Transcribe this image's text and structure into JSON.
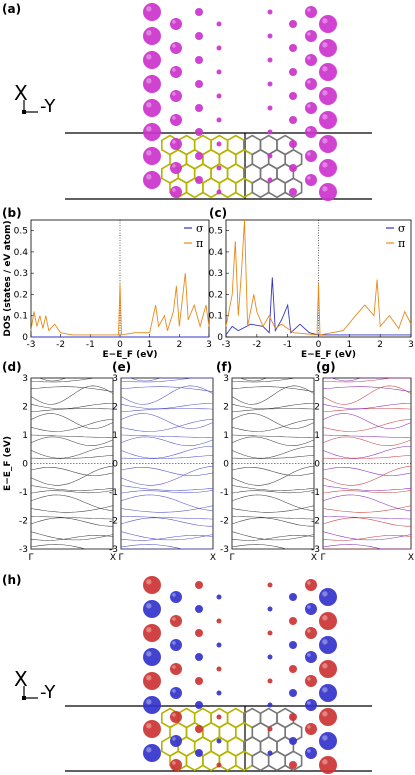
{
  "panels": {
    "a": "(a)",
    "b": "(b)",
    "c": "(c)",
    "d": "(d)",
    "e": "(e)",
    "f": "(f)",
    "g": "(g)",
    "h": "(h)"
  },
  "axes_glyph": {
    "x": "X",
    "y": "-Y"
  },
  "colors": {
    "magenta": "#cc33cc",
    "yellow": "#b5b200",
    "gray": "#777777",
    "blue": "#3333cc",
    "red": "#cc3333",
    "orange": "#e88a1a",
    "sigma": "#3333cc",
    "pi": "#e88a1a"
  },
  "chart_data": [
    {
      "type": "line",
      "id": "b",
      "xlabel": "E−E_F (eV)",
      "ylabel": "DOS (states / eV atom)",
      "xlim": [
        -3,
        3
      ],
      "ylim": [
        0,
        0.55
      ],
      "xticks": [
        "-3",
        "-2",
        "-1",
        "0",
        "1",
        "2",
        "3"
      ],
      "yticks": [
        "0",
        "0.1",
        "0.2",
        "0.3",
        "0.4",
        "0.5"
      ],
      "legend": [
        "σ",
        "π"
      ],
      "legend_position": "top-right",
      "series": [
        {
          "name": "σ",
          "values": [
            [
              -3,
              0
            ],
            [
              3,
              0
            ]
          ]
        },
        {
          "name": "π",
          "values": [
            [
              -3,
              0.03
            ],
            [
              -2.9,
              0.12
            ],
            [
              -2.8,
              0.05
            ],
            [
              -2.7,
              0.1
            ],
            [
              -2.6,
              0.04
            ],
            [
              -2.5,
              0.1
            ],
            [
              -2.4,
              0.03
            ],
            [
              -2.2,
              0.06
            ],
            [
              -2.0,
              0.02
            ],
            [
              -1.6,
              0.01
            ],
            [
              -1.0,
              0.01
            ],
            [
              -0.5,
              0.01
            ],
            [
              -0.05,
              0.01
            ],
            [
              0,
              0.25
            ],
            [
              0.05,
              0.01
            ],
            [
              0.5,
              0.02
            ],
            [
              1.0,
              0.02
            ],
            [
              1.2,
              0.15
            ],
            [
              1.3,
              0.05
            ],
            [
              1.5,
              0.1
            ],
            [
              1.6,
              0.03
            ],
            [
              1.8,
              0.12
            ],
            [
              1.9,
              0.24
            ],
            [
              2.0,
              0.05
            ],
            [
              2.2,
              0.3
            ],
            [
              2.3,
              0.08
            ],
            [
              2.5,
              0.15
            ],
            [
              2.7,
              0.05
            ],
            [
              2.9,
              0.15
            ],
            [
              3.0,
              0.05
            ]
          ]
        }
      ]
    },
    {
      "type": "line",
      "id": "c",
      "xlabel": "E−E_F (eV)",
      "xlim": [
        -3,
        3
      ],
      "ylim": [
        0,
        0.55
      ],
      "xticks": [
        "-3",
        "-2",
        "-1",
        "0",
        "1",
        "2",
        "3"
      ],
      "yticks": [
        "0",
        "0.1",
        "0.2",
        "0.3",
        "0.4",
        "0.5"
      ],
      "legend": [
        "σ",
        "π"
      ],
      "legend_position": "top-right",
      "series": [
        {
          "name": "σ",
          "values": [
            [
              -3,
              0.01
            ],
            [
              -2.8,
              0.05
            ],
            [
              -2.6,
              0.03
            ],
            [
              -2.2,
              0.06
            ],
            [
              -1.8,
              0.05
            ],
            [
              -1.6,
              0.02
            ],
            [
              -1.5,
              0.28
            ],
            [
              -1.4,
              0.03
            ],
            [
              -1.2,
              0.08
            ],
            [
              -1.0,
              0.15
            ],
            [
              -0.9,
              0.02
            ],
            [
              -0.6,
              0.06
            ],
            [
              -0.3,
              0.02
            ],
            [
              0,
              0.01
            ],
            [
              3,
              0.01
            ]
          ]
        },
        {
          "name": "π",
          "values": [
            [
              -3,
              0.05
            ],
            [
              -2.8,
              0.2
            ],
            [
              -2.7,
              0.45
            ],
            [
              -2.6,
              0.1
            ],
            [
              -2.5,
              0.3
            ],
            [
              -2.4,
              0.55
            ],
            [
              -2.3,
              0.05
            ],
            [
              -2.1,
              0.2
            ],
            [
              -2.0,
              0.12
            ],
            [
              -1.8,
              0.05
            ],
            [
              -1.6,
              0.1
            ],
            [
              -1.4,
              0.04
            ],
            [
              -1.2,
              0.06
            ],
            [
              -0.8,
              0.02
            ],
            [
              -0.05,
              0.01
            ],
            [
              0,
              0.25
            ],
            [
              0.05,
              0.01
            ],
            [
              0.8,
              0.03
            ],
            [
              1.2,
              0.1
            ],
            [
              1.5,
              0.15
            ],
            [
              1.8,
              0.1
            ],
            [
              1.9,
              0.27
            ],
            [
              2.0,
              0.05
            ],
            [
              2.3,
              0.1
            ],
            [
              2.6,
              0.04
            ],
            [
              2.8,
              0.12
            ],
            [
              3.0,
              0.06
            ]
          ]
        }
      ]
    },
    {
      "type": "line",
      "id": "bands",
      "ylabel": "E−E_F (eV)",
      "ylim": [
        -3,
        3
      ],
      "yticks": [
        "3",
        "2",
        "1",
        "0",
        "-1",
        "-2",
        "-3"
      ],
      "xticks": [
        "Γ",
        "X"
      ]
    }
  ]
}
